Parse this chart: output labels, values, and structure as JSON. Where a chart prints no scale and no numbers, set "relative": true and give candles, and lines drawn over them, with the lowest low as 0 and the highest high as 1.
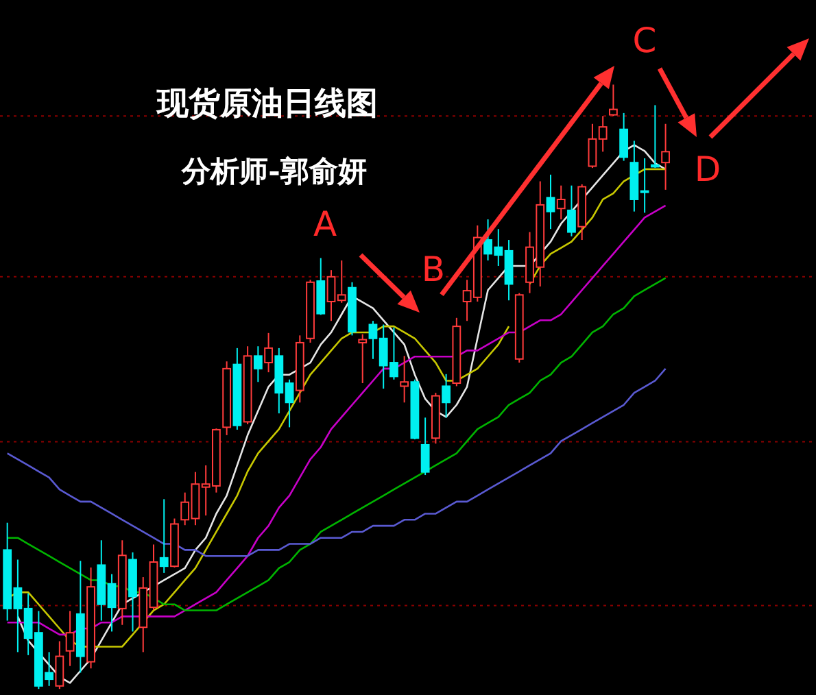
{
  "chart_data": {
    "type": "candlestick",
    "title": "现货原油日线图",
    "subtitle": "分析师-郭俞妍",
    "relative": true,
    "annotations": [
      "A",
      "B",
      "C",
      "D"
    ],
    "categories": [
      null,
      null,
      null,
      null,
      null,
      null,
      null,
      null,
      null,
      null,
      null,
      null,
      null,
      null,
      null,
      null,
      null,
      null,
      null,
      null,
      null,
      null,
      null,
      null,
      null,
      null,
      null,
      null,
      null,
      null,
      null,
      null,
      null,
      null,
      null,
      null,
      null,
      null,
      null,
      null,
      null,
      null,
      null,
      null,
      null,
      null,
      null,
      null,
      null,
      null,
      null,
      null,
      null,
      null,
      null,
      null,
      null,
      null,
      null,
      null,
      null,
      null,
      null,
      null
    ],
    "ohlc": [
      [
        0.23,
        0.275,
        0.113,
        0.133
      ],
      [
        0.167,
        0.214,
        0.061,
        0.133
      ],
      [
        0.133,
        0.158,
        0.056,
        0.084
      ],
      [
        0.093,
        0.129,
        0,
        0.005
      ],
      [
        0.027,
        0.061,
        0.005,
        0.016
      ],
      [
        0.005,
        0.079,
        0,
        0.054
      ],
      [
        0.063,
        0.129,
        0.038,
        0.093
      ],
      [
        0.124,
        0.212,
        0.027,
        0.054
      ],
      [
        0.045,
        0.201,
        0.034,
        0.169
      ],
      [
        0.205,
        0.246,
        0.113,
        0.14
      ],
      [
        0.174,
        0.19,
        0.095,
        0.135
      ],
      [
        0.133,
        0.246,
        0.106,
        0.221
      ],
      [
        0.214,
        0.226,
        0.095,
        0.153
      ],
      [
        0.102,
        0.185,
        0.061,
        0.167
      ],
      [
        0.135,
        0.239,
        0.131,
        0.21
      ],
      [
        0.217,
        0.314,
        0.192,
        0.203
      ],
      [
        0.203,
        0.282,
        0.201,
        0.273
      ],
      [
        0.28,
        0.325,
        0.271,
        0.309
      ],
      [
        0.282,
        0.359,
        0.271,
        0.339
      ],
      [
        0.334,
        0.37,
        0.287,
        0.339
      ],
      [
        0.336,
        0.431,
        0.325,
        0.429
      ],
      [
        0.433,
        0.542,
        0.42,
        0.53
      ],
      [
        0.537,
        0.564,
        0.429,
        0.436
      ],
      [
        0.442,
        0.567,
        0.438,
        0.551
      ],
      [
        0.551,
        0.567,
        0.508,
        0.53
      ],
      [
        0.54,
        0.589,
        0.524,
        0.564
      ],
      [
        0.551,
        0.564,
        0.456,
        0.49
      ],
      [
        0.506,
        0.512,
        0.433,
        0.474
      ],
      [
        0.494,
        0.585,
        0.474,
        0.573
      ],
      [
        0.58,
        0.677,
        0.573,
        0.673
      ],
      [
        0.675,
        0.713,
        0.619,
        0.621
      ],
      [
        0.641,
        0.693,
        0.609,
        0.682
      ],
      [
        0.643,
        0.709,
        0.639,
        0.652
      ],
      [
        0.664,
        0.673,
        0.585,
        0.591
      ],
      [
        0.573,
        0.587,
        0.506,
        0.578
      ],
      [
        0.603,
        0.609,
        0.546,
        0.58
      ],
      [
        0.58,
        0.603,
        0.497,
        0.535
      ],
      [
        0.54,
        0.598,
        0.512,
        0.517
      ],
      [
        0.501,
        0.551,
        0.474,
        0.508
      ],
      [
        0.508,
        0.512,
        0.413,
        0.415
      ],
      [
        0.404,
        0.449,
        0.354,
        0.359
      ],
      [
        0.415,
        0.49,
        0.406,
        0.485
      ],
      [
        0.501,
        0.521,
        0.449,
        0.474
      ],
      [
        0.506,
        0.614,
        0.501,
        0.6
      ],
      [
        0.641,
        0.677,
        0.609,
        0.659
      ],
      [
        0.648,
        0.767,
        0.641,
        0.747
      ],
      [
        0.743,
        0.777,
        0.709,
        0.72
      ],
      [
        0.731,
        0.761,
        0.7,
        0.718
      ],
      [
        0.725,
        0.743,
        0.643,
        0.67
      ],
      [
        0.546,
        0.655,
        0.54,
        0.652
      ],
      [
        0.673,
        0.756,
        0.655,
        0.731
      ],
      [
        0.698,
        0.84,
        0.666,
        0.801
      ],
      [
        0.813,
        0.851,
        0.761,
        0.79
      ],
      [
        0.795,
        0.833,
        0.777,
        0.81
      ],
      [
        0.792,
        0.833,
        0.749,
        0.756
      ],
      [
        0.765,
        0.835,
        0.743,
        0.831
      ],
      [
        0.865,
        0.935,
        0.862,
        0.91
      ],
      [
        0.91,
        0.948,
        0.889,
        0.93
      ],
      [
        0.95,
        1,
        0.948,
        0.959
      ],
      [
        0.926,
        0.953,
        0.874,
        0.88
      ],
      [
        0.871,
        0.907,
        0.79,
        0.81
      ],
      [
        0.824,
        0.878,
        0.788,
        0.822
      ],
      [
        0.867,
        0.966,
        0.862,
        0.864
      ],
      [
        0.871,
        0.935,
        0.826,
        0.889
      ]
    ],
    "series": [
      {
        "type": "line",
        "color": "#e6e6e6",
        "values": [
          null,
          0.12,
          0.08,
          0.06,
          0.04,
          0.02,
          0.01,
          0.03,
          0.05,
          0.08,
          0.11,
          0.14,
          0.15,
          0.16,
          0.17,
          0.18,
          0.19,
          0.2,
          0.23,
          0.25,
          0.29,
          0.32,
          0.37,
          0.42,
          0.46,
          0.5,
          0.52,
          0.52,
          0.53,
          0.54,
          0.57,
          0.59,
          0.62,
          0.65,
          0.64,
          0.63,
          0.61,
          0.59,
          0.57,
          0.52,
          0.48,
          0.46,
          0.45,
          0.47,
          0.5,
          0.58,
          0.66,
          0.68,
          0.7,
          0.7,
          0.7,
          0.72,
          0.74,
          0.77,
          0.79,
          0.81,
          0.83,
          0.85,
          0.87,
          0.89,
          0.9,
          0.89,
          0.87,
          0.86
        ]
      },
      {
        "type": "line",
        "color": "#c8c800",
        "values": [
          0.15,
          0.16,
          0.16,
          0.14,
          0.12,
          0.1,
          0.08,
          0.07,
          0.07,
          0.07,
          0.07,
          0.07,
          0.09,
          0.11,
          0.13,
          0.14,
          0.16,
          0.18,
          0.2,
          0.23,
          0.26,
          0.29,
          0.32,
          0.36,
          0.39,
          0.41,
          0.43,
          0.46,
          0.49,
          0.52,
          0.54,
          0.56,
          0.58,
          0.59,
          0.59,
          0.59,
          0.6,
          0.6,
          0.59,
          0.58,
          0.56,
          0.54,
          0.51,
          0.51,
          0.52,
          0.53,
          0.55,
          0.57,
          0.6,
          null,
          0.67,
          0.7,
          0.72,
          0.73,
          0.74,
          0.76,
          0.78,
          0.81,
          0.82,
          0.84,
          0.85,
          0.86,
          0.86,
          0.86
        ]
      },
      {
        "type": "line",
        "color": "#c800c8",
        "values": [
          0.11,
          0.11,
          0.11,
          0.11,
          0.1,
          0.09,
          0.09,
          0.1,
          0.1,
          0.11,
          0.11,
          0.12,
          0.12,
          0.12,
          0.12,
          0.12,
          0.12,
          0.13,
          0.14,
          0.15,
          0.16,
          0.18,
          0.2,
          0.22,
          0.25,
          0.27,
          0.3,
          0.32,
          0.35,
          0.38,
          0.4,
          0.43,
          0.45,
          0.47,
          0.49,
          0.51,
          0.53,
          0.53,
          0.54,
          0.55,
          0.55,
          0.55,
          0.55,
          0.55,
          0.56,
          0.56,
          0.57,
          0.58,
          0.59,
          0.59,
          0.6,
          0.61,
          0.61,
          0.62,
          0.64,
          0.66,
          0.68,
          0.7,
          0.72,
          0.74,
          0.76,
          0.78,
          0.79,
          0.8
        ]
      },
      {
        "type": "line",
        "color": "#00b400",
        "values": [
          0.25,
          0.25,
          0.24,
          0.23,
          0.22,
          0.21,
          0.2,
          0.19,
          0.18,
          0.18,
          0.17,
          0.17,
          0.16,
          0.16,
          0.15,
          0.14,
          0.14,
          0.13,
          0.13,
          0.13,
          0.13,
          0.14,
          0.15,
          0.16,
          0.17,
          0.18,
          0.2,
          0.21,
          0.23,
          0.24,
          0.26,
          0.27,
          0.28,
          0.29,
          0.3,
          0.31,
          0.32,
          0.33,
          0.34,
          0.35,
          0.36,
          0.37,
          0.38,
          0.39,
          0.41,
          0.43,
          0.44,
          0.45,
          0.47,
          0.48,
          0.49,
          0.51,
          0.52,
          0.54,
          0.55,
          0.57,
          0.59,
          0.6,
          0.62,
          0.63,
          0.65,
          0.66,
          0.67,
          0.68
        ]
      },
      {
        "type": "line",
        "color": "#5a5ad2",
        "values": [
          0.39,
          0.38,
          0.37,
          0.36,
          0.35,
          0.33,
          0.32,
          0.31,
          0.31,
          0.3,
          0.29,
          0.28,
          0.27,
          0.26,
          0.25,
          0.24,
          0.24,
          0.23,
          0.23,
          0.22,
          0.22,
          0.22,
          0.22,
          0.22,
          0.23,
          0.23,
          0.23,
          0.24,
          0.24,
          0.24,
          0.25,
          0.25,
          0.25,
          0.26,
          0.26,
          0.27,
          0.27,
          0.27,
          0.28,
          0.28,
          0.29,
          0.29,
          0.3,
          0.31,
          0.31,
          0.32,
          0.33,
          0.34,
          0.35,
          0.36,
          0.37,
          0.38,
          0.39,
          0.41,
          0.42,
          0.43,
          0.44,
          0.45,
          0.46,
          0.47,
          0.49,
          0.5,
          0.51,
          0.53
        ]
      }
    ],
    "ref_lines": [
      {
        "axis": "y",
        "value": 0.948,
        "color": "#8b0000",
        "line_style": "dotted"
      },
      {
        "axis": "y",
        "value": 0.682,
        "color": "#8b0000",
        "line_style": "dotted"
      },
      {
        "axis": "y",
        "value": 0.409,
        "color": "#8b0000",
        "line_style": "dotted"
      },
      {
        "axis": "y",
        "value": 0.138,
        "color": "#8b0000",
        "line_style": "dotted"
      }
    ]
  }
}
